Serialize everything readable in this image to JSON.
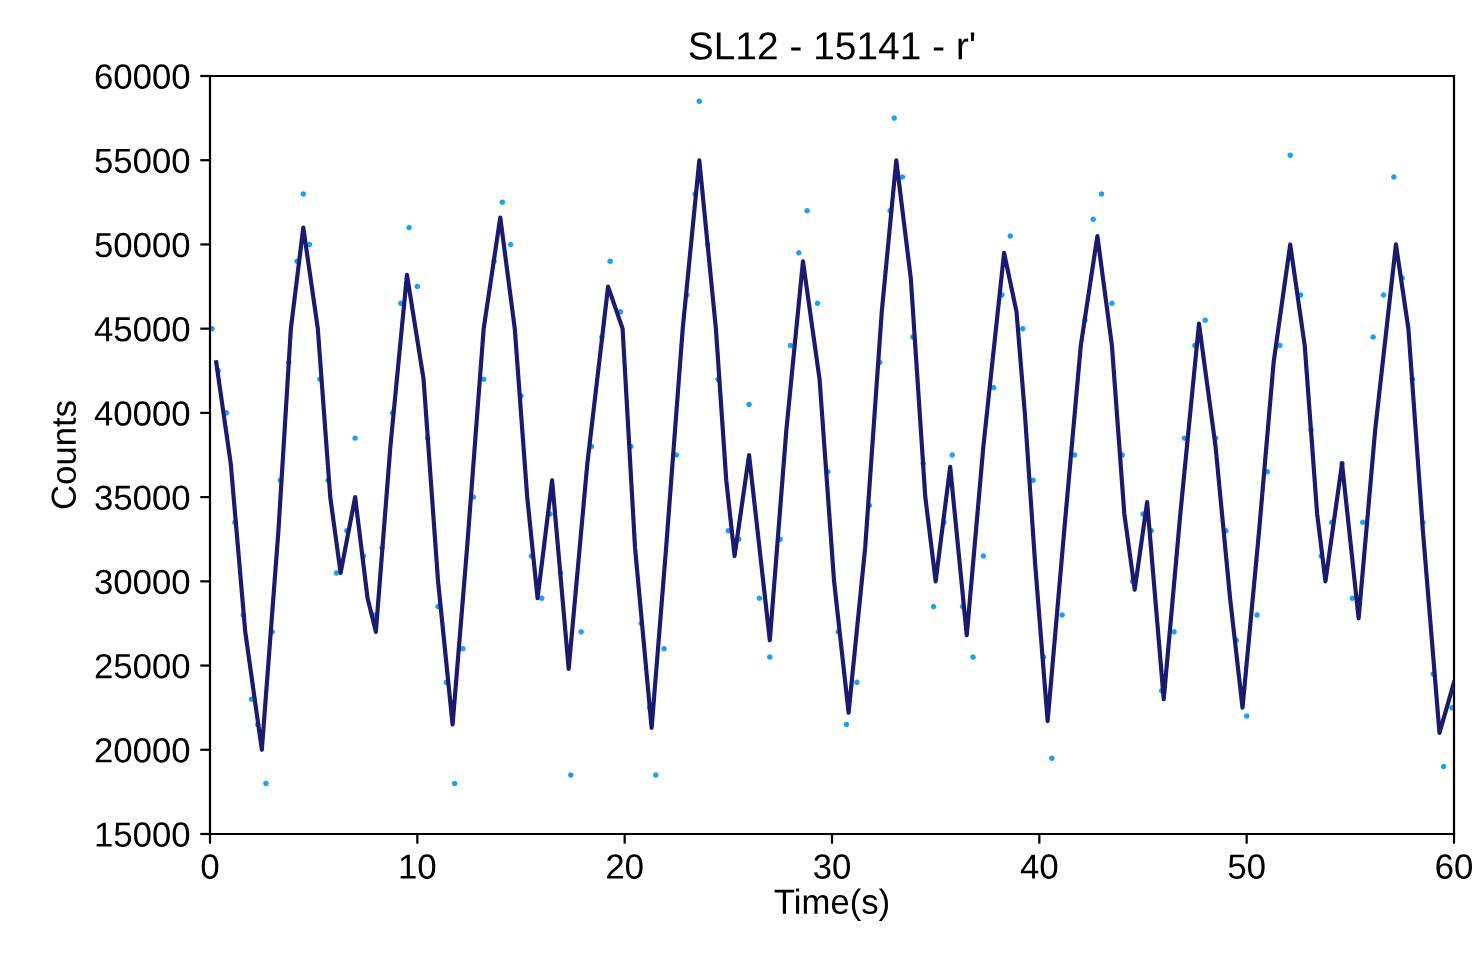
{
  "chart_data": {
    "type": "line",
    "title": "SL12 - 15141 - r'",
    "xlabel": "Time(s)",
    "ylabel": "Counts",
    "xlim": [
      0,
      60
    ],
    "ylim": [
      15000,
      60000
    ],
    "xticks": [
      0,
      10,
      20,
      30,
      40,
      50,
      60
    ],
    "yticks": [
      15000,
      20000,
      25000,
      30000,
      35000,
      40000,
      45000,
      50000,
      55000,
      60000
    ],
    "grid": false,
    "legend": false,
    "series": [
      {
        "type": "scatter",
        "color": "#1ea0f0",
        "marker": "circle",
        "x": [
          0.1,
          0.4,
          0.8,
          1.2,
          1.6,
          2.0,
          2.3,
          2.7,
          3.0,
          3.4,
          3.8,
          4.2,
          4.5,
          4.8,
          5.3,
          5.7,
          6.1,
          6.6,
          7.0,
          7.4,
          7.9,
          8.3,
          8.8,
          9.2,
          9.6,
          10.0,
          10.5,
          11.0,
          11.4,
          11.8,
          12.2,
          12.7,
          13.2,
          13.7,
          14.1,
          14.5,
          15.0,
          15.5,
          16.0,
          16.4,
          16.9,
          17.4,
          17.9,
          18.4,
          18.9,
          19.3,
          19.8,
          20.3,
          20.8,
          21.2,
          21.5,
          21.9,
          22.5,
          23.0,
          23.4,
          23.6,
          24.0,
          24.5,
          25.0,
          25.5,
          26.0,
          26.5,
          27.0,
          27.5,
          28.0,
          28.4,
          28.8,
          29.3,
          29.8,
          30.3,
          30.7,
          31.2,
          31.8,
          32.3,
          32.8,
          33.0,
          33.4,
          33.9,
          34.4,
          34.9,
          35.4,
          35.8,
          36.3,
          36.8,
          37.3,
          37.8,
          38.2,
          38.6,
          39.2,
          39.7,
          40.2,
          40.6,
          41.1,
          41.7,
          42.2,
          42.6,
          43.0,
          43.5,
          44.0,
          44.5,
          45.0,
          45.4,
          45.9,
          46.5,
          47.0,
          47.5,
          48.0,
          48.5,
          49.0,
          49.5,
          50.0,
          50.5,
          51.0,
          51.6,
          52.1,
          52.6,
          53.1,
          53.6,
          54.1,
          54.6,
          55.1,
          55.6,
          56.1,
          56.6,
          57.1,
          57.5,
          58.0,
          58.5,
          59.0,
          59.5,
          59.9
        ],
        "values": [
          45000,
          42500,
          40000,
          33500,
          28000,
          23000,
          21500,
          18000,
          27000,
          36000,
          43000,
          49000,
          53000,
          50000,
          42000,
          36000,
          30500,
          33000,
          38500,
          31500,
          28000,
          32000,
          40000,
          46500,
          51000,
          47500,
          38500,
          28500,
          24000,
          18000,
          26000,
          35000,
          42000,
          49000,
          52500,
          50000,
          41000,
          31500,
          29000,
          34000,
          30500,
          18500,
          27000,
          38000,
          44500,
          49000,
          46000,
          38000,
          27500,
          22500,
          18500,
          26000,
          37500,
          47000,
          53000,
          58500,
          50000,
          42000,
          33000,
          32500,
          40500,
          29000,
          25500,
          32500,
          44000,
          49500,
          52000,
          46500,
          36500,
          27000,
          21500,
          24000,
          34500,
          43000,
          52000,
          57500,
          54000,
          44500,
          37000,
          28500,
          33500,
          37500,
          28500,
          25500,
          31500,
          41500,
          47000,
          50500,
          45000,
          36000,
          25500,
          19500,
          28000,
          37500,
          45500,
          51500,
          53000,
          46500,
          37500,
          30000,
          34000,
          33000,
          23500,
          27000,
          38500,
          44000,
          45500,
          38500,
          33000,
          26500,
          22000,
          28000,
          36500,
          44000,
          55300,
          47000,
          39000,
          31500,
          33500,
          37000,
          29000,
          33500,
          44500,
          47000,
          54000,
          48000,
          42000,
          33500,
          24500,
          19000,
          22500
        ]
      },
      {
        "color": "#1a1a6e",
        "marker": "none",
        "line_style": "solid",
        "x": [
          0.3,
          1.0,
          1.7,
          2.5,
          3.3,
          3.9,
          4.5,
          5.2,
          5.8,
          6.3,
          7.0,
          7.6,
          8.0,
          8.7,
          9.5,
          10.3,
          11.0,
          11.7,
          12.4,
          13.2,
          14.0,
          14.7,
          15.3,
          15.8,
          16.5,
          17.3,
          18.2,
          19.2,
          19.9,
          20.5,
          21.3,
          22.0,
          22.8,
          23.6,
          24.4,
          24.9,
          25.3,
          26.0,
          27.0,
          27.8,
          28.6,
          29.4,
          30.1,
          30.8,
          31.6,
          32.4,
          33.1,
          33.8,
          34.5,
          35.0,
          35.7,
          36.5,
          37.3,
          38.3,
          38.9,
          39.3,
          39.8,
          40.4,
          41.2,
          42.0,
          42.8,
          43.5,
          44.1,
          44.6,
          45.2,
          46.0,
          46.8,
          47.7,
          48.5,
          49.2,
          49.8,
          50.6,
          51.3,
          52.1,
          52.8,
          53.4,
          53.8,
          54.6,
          55.4,
          56.2,
          57.2,
          57.8,
          58.5,
          59.3,
          60.0
        ],
        "values": [
          43000,
          37000,
          27000,
          20000,
          33000,
          45000,
          51000,
          45000,
          35000,
          30500,
          35000,
          29000,
          27000,
          38000,
          48200,
          42000,
          30000,
          21500,
          32000,
          45000,
          51600,
          45000,
          35000,
          29000,
          36000,
          24800,
          37000,
          47500,
          45000,
          32000,
          21300,
          32000,
          45000,
          55000,
          45000,
          36000,
          31500,
          37500,
          26500,
          39000,
          49000,
          42000,
          30000,
          22200,
          32000,
          46000,
          55000,
          48000,
          35000,
          30000,
          36800,
          26800,
          38000,
          49500,
          46000,
          40000,
          31000,
          21700,
          33000,
          44000,
          50500,
          44000,
          34000,
          29500,
          34700,
          23000,
          34000,
          45300,
          38000,
          29000,
          22500,
          33000,
          43000,
          50000,
          44000,
          34000,
          30000,
          37000,
          27800,
          39000,
          50000,
          45000,
          33000,
          21000,
          24000
        ]
      }
    ]
  }
}
